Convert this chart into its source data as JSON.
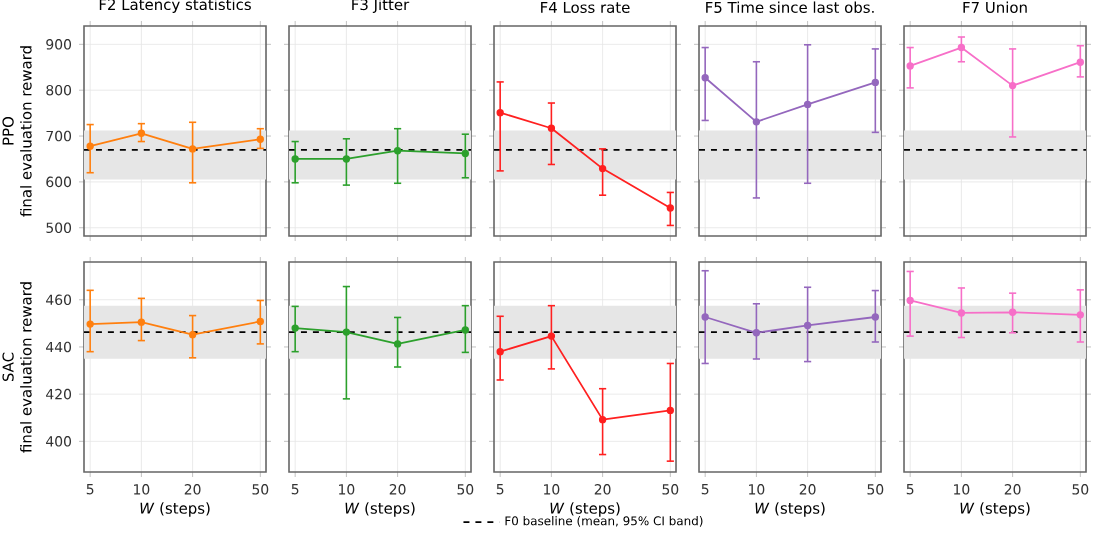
{
  "chart_data": [
    {
      "type": "line",
      "title": "F2 Latency statistics",
      "ylabel": "PPO\nfinal evaluation reward",
      "log": "x",
      "x": [
        5,
        10,
        20,
        50
      ],
      "xlim": [
        4.6,
        54
      ],
      "xticks": [
        5,
        10,
        20,
        50
      ],
      "ylim": [
        482,
        940
      ],
      "yticks": [
        500,
        600,
        700,
        800,
        900
      ],
      "grid": true,
      "marker": "circle",
      "tick_labels": "y",
      "series": [
        {
          "color": "#ff7f0e",
          "values": [
            678,
            706,
            672,
            693
          ],
          "errors": [
            [
              620,
              725
            ],
            [
              688,
              727
            ],
            [
              598,
              730
            ],
            [
              673,
              716
            ]
          ]
        }
      ],
      "ref_lines": [
        {
          "axis": "y",
          "value": 670,
          "color": "#000000",
          "line_style": "dashed"
        }
      ],
      "bands": [
        {
          "axis": "y",
          "from": 605,
          "to": 712,
          "color": "#e6e6e6"
        }
      ]
    },
    {
      "type": "line",
      "title": "F3 Jitter",
      "log": "x",
      "x": [
        5,
        10,
        20,
        50
      ],
      "xlim": [
        4.6,
        54
      ],
      "xticks": [
        5,
        10,
        20,
        50
      ],
      "ylim": [
        482,
        940
      ],
      "yticks": [
        500,
        600,
        700,
        800,
        900
      ],
      "grid": true,
      "marker": "circle",
      "tick_labels": false,
      "series": [
        {
          "color": "#2ca02c",
          "values": [
            650,
            650,
            668,
            662
          ],
          "errors": [
            [
              598,
              688
            ],
            [
              593,
              694
            ],
            [
              597,
              716
            ],
            [
              609,
              704
            ]
          ]
        }
      ],
      "ref_lines": [
        {
          "axis": "y",
          "value": 670,
          "color": "#000000",
          "line_style": "dashed"
        }
      ],
      "bands": [
        {
          "axis": "y",
          "from": 605,
          "to": 712,
          "color": "#e6e6e6"
        }
      ]
    },
    {
      "type": "line",
      "title": "F4 Loss rate",
      "log": "x",
      "x": [
        5,
        10,
        20,
        50
      ],
      "xlim": [
        4.6,
        54
      ],
      "xticks": [
        5,
        10,
        20,
        50
      ],
      "ylim": [
        482,
        940
      ],
      "yticks": [
        500,
        600,
        700,
        800,
        900
      ],
      "grid": true,
      "marker": "circle",
      "tick_labels": false,
      "series": [
        {
          "color": "#ff2020",
          "values": [
            751,
            717,
            629,
            543
          ],
          "errors": [
            [
              624,
              818
            ],
            [
              638,
              772
            ],
            [
              571,
              672
            ],
            [
              505,
              577
            ]
          ]
        }
      ],
      "ref_lines": [
        {
          "axis": "y",
          "value": 670,
          "color": "#000000",
          "line_style": "dashed"
        }
      ],
      "bands": [
        {
          "axis": "y",
          "from": 605,
          "to": 712,
          "color": "#e6e6e6"
        }
      ]
    },
    {
      "type": "line",
      "title": "F5 Time since last obs.",
      "log": "x",
      "x": [
        5,
        10,
        20,
        50
      ],
      "xlim": [
        4.6,
        54
      ],
      "xticks": [
        5,
        10,
        20,
        50
      ],
      "ylim": [
        482,
        940
      ],
      "yticks": [
        500,
        600,
        700,
        800,
        900
      ],
      "grid": true,
      "marker": "circle",
      "tick_labels": false,
      "series": [
        {
          "color": "#9467bd",
          "values": [
            827,
            731,
            769,
            817
          ],
          "errors": [
            [
              734,
              893
            ],
            [
              565,
              862
            ],
            [
              597,
              899
            ],
            [
              708,
              890
            ]
          ]
        }
      ],
      "ref_lines": [
        {
          "axis": "y",
          "value": 670,
          "color": "#000000",
          "line_style": "dashed"
        }
      ],
      "bands": [
        {
          "axis": "y",
          "from": 605,
          "to": 712,
          "color": "#e6e6e6"
        }
      ]
    },
    {
      "type": "line",
      "title": "F7 Union",
      "log": "x",
      "x": [
        5,
        10,
        20,
        50
      ],
      "xlim": [
        4.6,
        54
      ],
      "xticks": [
        5,
        10,
        20,
        50
      ],
      "ylim": [
        482,
        940
      ],
      "yticks": [
        500,
        600,
        700,
        800,
        900
      ],
      "grid": true,
      "marker": "circle",
      "tick_labels": false,
      "series": [
        {
          "color": "#f76fc8",
          "values": [
            853,
            893,
            810,
            861
          ],
          "errors": [
            [
              805,
              893
            ],
            [
              862,
              916
            ],
            [
              698,
              890
            ],
            [
              829,
              897
            ]
          ]
        }
      ],
      "ref_lines": [
        {
          "axis": "y",
          "value": 670,
          "color": "#000000",
          "line_style": "dashed"
        }
      ],
      "bands": [
        {
          "axis": "y",
          "from": 605,
          "to": 712,
          "color": "#e6e6e6"
        }
      ]
    },
    {
      "type": "line",
      "ylabel": "SAC\nfinal evaluation reward",
      "xlabel": "*W* (steps)",
      "log": "x",
      "x": [
        5,
        10,
        20,
        50
      ],
      "xlim": [
        4.6,
        54
      ],
      "xticks": [
        5,
        10,
        20,
        50
      ],
      "ylim": [
        387,
        476
      ],
      "yticks": [
        400,
        420,
        440,
        460
      ],
      "grid": true,
      "marker": "circle",
      "series": [
        {
          "color": "#ff7f0e",
          "values": [
            449.7,
            450.5,
            445.2,
            450.8
          ],
          "errors": [
            [
              438,
              464
            ],
            [
              442.7,
              460.6
            ],
            [
              435.4,
              453.3
            ],
            [
              441.3,
              459.7
            ]
          ]
        }
      ],
      "ref_lines": [
        {
          "axis": "y",
          "value": 446.3,
          "color": "#000000",
          "line_style": "dashed"
        }
      ],
      "bands": [
        {
          "axis": "y",
          "from": 435,
          "to": 457.5,
          "color": "#e6e6e6"
        }
      ]
    },
    {
      "type": "line",
      "xlabel": "*W* (steps)",
      "log": "x",
      "x": [
        5,
        10,
        20,
        50
      ],
      "xlim": [
        4.6,
        54
      ],
      "xticks": [
        5,
        10,
        20,
        50
      ],
      "ylim": [
        387,
        476
      ],
      "yticks": [
        400,
        420,
        440,
        460
      ],
      "grid": true,
      "marker": "circle",
      "tick_labels": "x",
      "series": [
        {
          "color": "#2ca02c",
          "values": [
            448,
            446.3,
            441.3,
            447.2
          ],
          "errors": [
            [
              438,
              457.2
            ],
            [
              418,
              465.6
            ],
            [
              431.5,
              452.5
            ],
            [
              437.7,
              457.5
            ]
          ]
        }
      ],
      "ref_lines": [
        {
          "axis": "y",
          "value": 446.3,
          "color": "#000000",
          "line_style": "dashed"
        }
      ],
      "bands": [
        {
          "axis": "y",
          "from": 435,
          "to": 457.5,
          "color": "#e6e6e6"
        }
      ]
    },
    {
      "type": "line",
      "xlabel": "*W* (steps)",
      "log": "x",
      "x": [
        5,
        10,
        20,
        50
      ],
      "xlim": [
        4.6,
        54
      ],
      "xticks": [
        5,
        10,
        20,
        50
      ],
      "ylim": [
        387,
        476
      ],
      "yticks": [
        400,
        420,
        440,
        460
      ],
      "grid": true,
      "marker": "circle",
      "tick_labels": "x",
      "legend": "bottom",
      "series": [
        {
          "color": "#ff2020",
          "values": [
            438,
            444.6,
            409.2,
            413.1
          ],
          "errors": [
            [
              426,
              453
            ],
            [
              430.7,
              457.5
            ],
            [
              394.4,
              422.3
            ],
            [
              391.6,
              433
            ]
          ]
        }
      ],
      "ref_lines": [
        {
          "axis": "y",
          "value": 446.3,
          "color": "#000000",
          "line_style": "dashed",
          "label": "F0 baseline (mean, 95% CI band)"
        }
      ],
      "bands": [
        {
          "axis": "y",
          "from": 435,
          "to": 457.5,
          "color": "#e6e6e6"
        }
      ]
    },
    {
      "type": "line",
      "xlabel": "*W* (steps)",
      "log": "x",
      "x": [
        5,
        10,
        20,
        50
      ],
      "xlim": [
        4.6,
        54
      ],
      "xticks": [
        5,
        10,
        20,
        50
      ],
      "ylim": [
        387,
        476
      ],
      "yticks": [
        400,
        420,
        440,
        460
      ],
      "grid": true,
      "marker": "circle",
      "tick_labels": "x",
      "series": [
        {
          "color": "#9467bd",
          "values": [
            452.7,
            446,
            449.1,
            452.7
          ],
          "errors": [
            [
              433,
              472.3
            ],
            [
              434.9,
              458.3
            ],
            [
              433.8,
              465.3
            ],
            [
              442.1,
              463.9
            ]
          ]
        }
      ],
      "ref_lines": [
        {
          "axis": "y",
          "value": 446.3,
          "color": "#000000",
          "line_style": "dashed"
        }
      ],
      "bands": [
        {
          "axis": "y",
          "from": 435,
          "to": 457.5,
          "color": "#e6e6e6"
        }
      ]
    },
    {
      "type": "line",
      "xlabel": "*W* (steps)",
      "log": "x",
      "x": [
        5,
        10,
        20,
        50
      ],
      "xlim": [
        4.6,
        54
      ],
      "xticks": [
        5,
        10,
        20,
        50
      ],
      "ylim": [
        387,
        476
      ],
      "yticks": [
        400,
        420,
        440,
        460
      ],
      "grid": true,
      "marker": "circle",
      "tick_labels": "x",
      "series": [
        {
          "color": "#f76fc8",
          "values": [
            459.7,
            454.4,
            454.7,
            453.6
          ],
          "errors": [
            [
              444.6,
              472
            ],
            [
              444,
              465
            ],
            [
              446,
              462.8
            ],
            [
              442.1,
              464.2
            ]
          ]
        }
      ],
      "ref_lines": [
        {
          "axis": "y",
          "value": 446.3,
          "color": "#000000",
          "line_style": "dashed"
        }
      ],
      "bands": [
        {
          "axis": "y",
          "from": 435,
          "to": 457.5,
          "color": "#e6e6e6"
        }
      ]
    }
  ]
}
